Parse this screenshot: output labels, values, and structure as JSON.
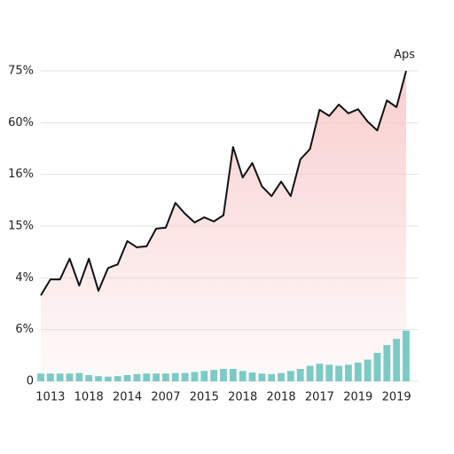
{
  "chart_data": {
    "type": "line-bar",
    "annotation": "Aps",
    "categories": [
      null,
      "1013",
      null,
      null,
      null,
      "1018",
      null,
      null,
      null,
      "2014",
      null,
      null,
      null,
      "2007",
      null,
      null,
      null,
      "2015",
      null,
      null,
      null,
      "2018",
      null,
      null,
      null,
      "2018",
      null,
      null,
      null,
      "2017",
      null,
      null,
      null,
      "2019",
      null,
      null,
      null,
      "2019",
      null
    ],
    "series": [
      {
        "kind": "line",
        "color": "#111111",
        "area_color": "#f8c9c9",
        "values": [
          1.66,
          1.97,
          1.97,
          2.37,
          1.85,
          2.37,
          1.75,
          2.19,
          2.26,
          2.71,
          2.59,
          2.61,
          2.95,
          2.97,
          3.45,
          3.24,
          3.07,
          3.17,
          3.09,
          3.21,
          4.53,
          3.94,
          4.22,
          3.77,
          3.58,
          3.86,
          3.58,
          4.29,
          4.49,
          5.25,
          5.13,
          5.35,
          5.18,
          5.26,
          5.02,
          4.85,
          5.43,
          5.3,
          6.0
        ]
      },
      {
        "kind": "bar",
        "color": "#7ccac4",
        "values": [
          0.15,
          0.15,
          0.15,
          0.15,
          0.16,
          0.12,
          0.1,
          0.09,
          0.1,
          0.12,
          0.14,
          0.15,
          0.15,
          0.15,
          0.16,
          0.16,
          0.18,
          0.2,
          0.22,
          0.24,
          0.24,
          0.2,
          0.17,
          0.15,
          0.14,
          0.16,
          0.2,
          0.24,
          0.3,
          0.34,
          0.32,
          0.3,
          0.32,
          0.36,
          0.42,
          0.55,
          0.7,
          0.82,
          0.98
        ]
      }
    ],
    "ylim": [
      0,
      6
    ],
    "yticks": [
      {
        "value": 0,
        "label": "0"
      },
      {
        "value": 1,
        "label": "6%"
      },
      {
        "value": 2,
        "label": "4%"
      },
      {
        "value": 3,
        "label": "15%"
      },
      {
        "value": 4,
        "label": "16%"
      },
      {
        "value": 5,
        "label": "60%"
      },
      {
        "value": 6,
        "label": "75%"
      }
    ],
    "grid": true
  }
}
